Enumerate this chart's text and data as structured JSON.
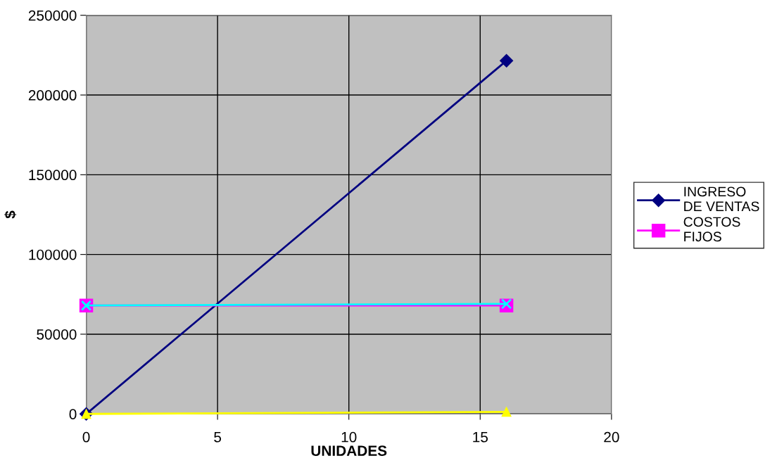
{
  "chart_data": {
    "type": "line",
    "xlabel": "UNIDADES",
    "ylabel": "$",
    "x": [
      0,
      16
    ],
    "series": [
      {
        "name": "INGRESO\nDE VENTAS",
        "color": "#000080",
        "marker": "diamond",
        "values": [
          0,
          221500
        ]
      },
      {
        "name": "COSTOS\nFIJOS",
        "color": "#ff00ff",
        "marker": "square",
        "values": [
          68000,
          68000
        ]
      },
      {
        "color": "#00ffff",
        "marker": "cross",
        "values": [
          68000,
          69000
        ]
      },
      {
        "color": "#ffff00",
        "marker": "triangle",
        "values": [
          0,
          1300
        ]
      }
    ],
    "xlim": [
      0,
      20
    ],
    "xticks": [
      0,
      5,
      10,
      15,
      20
    ],
    "ylim": [
      0,
      250000
    ],
    "yticks": [
      0,
      50000,
      100000,
      150000,
      200000,
      250000
    ],
    "grid": true,
    "legend": "right",
    "line_style": "solid"
  }
}
